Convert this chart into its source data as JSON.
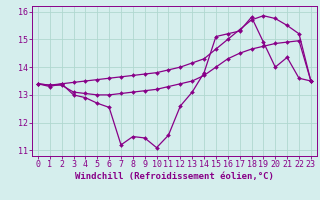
{
  "xlabel": "Windchill (Refroidissement éolien,°C)",
  "xlim": [
    -0.5,
    23.5
  ],
  "ylim": [
    10.8,
    16.2
  ],
  "yticks": [
    11,
    12,
    13,
    14,
    15,
    16
  ],
  "ytick_labels": [
    "11",
    "12",
    "13",
    "14",
    "15",
    "16"
  ],
  "xtick_labels": [
    "0",
    "1",
    "2",
    "3",
    "4",
    "5",
    "6",
    "7",
    "8",
    "9",
    "10",
    "11",
    "12",
    "13",
    "14",
    "15",
    "16",
    "17",
    "18",
    "19",
    "20",
    "21",
    "22",
    "23"
  ],
  "background_color": "#d5eeed",
  "grid_color": "#b0d8d0",
  "line_color": "#880088",
  "line1_y": [
    13.4,
    13.3,
    13.4,
    13.0,
    12.9,
    12.7,
    12.55,
    11.2,
    11.5,
    11.45,
    11.1,
    11.55,
    12.6,
    13.1,
    13.8,
    15.1,
    15.2,
    15.3,
    15.8,
    14.9,
    14.0,
    14.35,
    13.6,
    13.5
  ],
  "line2_y": [
    13.4,
    13.35,
    13.35,
    13.1,
    13.05,
    13.0,
    13.0,
    13.05,
    13.1,
    13.15,
    13.2,
    13.3,
    13.4,
    13.5,
    13.7,
    14.0,
    14.3,
    14.5,
    14.65,
    14.75,
    14.85,
    14.9,
    14.95,
    13.5
  ],
  "line3_y": [
    13.4,
    13.35,
    13.4,
    13.45,
    13.5,
    13.55,
    13.6,
    13.65,
    13.7,
    13.75,
    13.8,
    13.9,
    14.0,
    14.15,
    14.3,
    14.65,
    15.0,
    15.35,
    15.7,
    15.85,
    15.75,
    15.5,
    15.2,
    13.5
  ],
  "marker": "D",
  "marker_size": 2.0,
  "linewidth": 0.9,
  "xlabel_fontsize": 6.5,
  "tick_fontsize": 6.0
}
